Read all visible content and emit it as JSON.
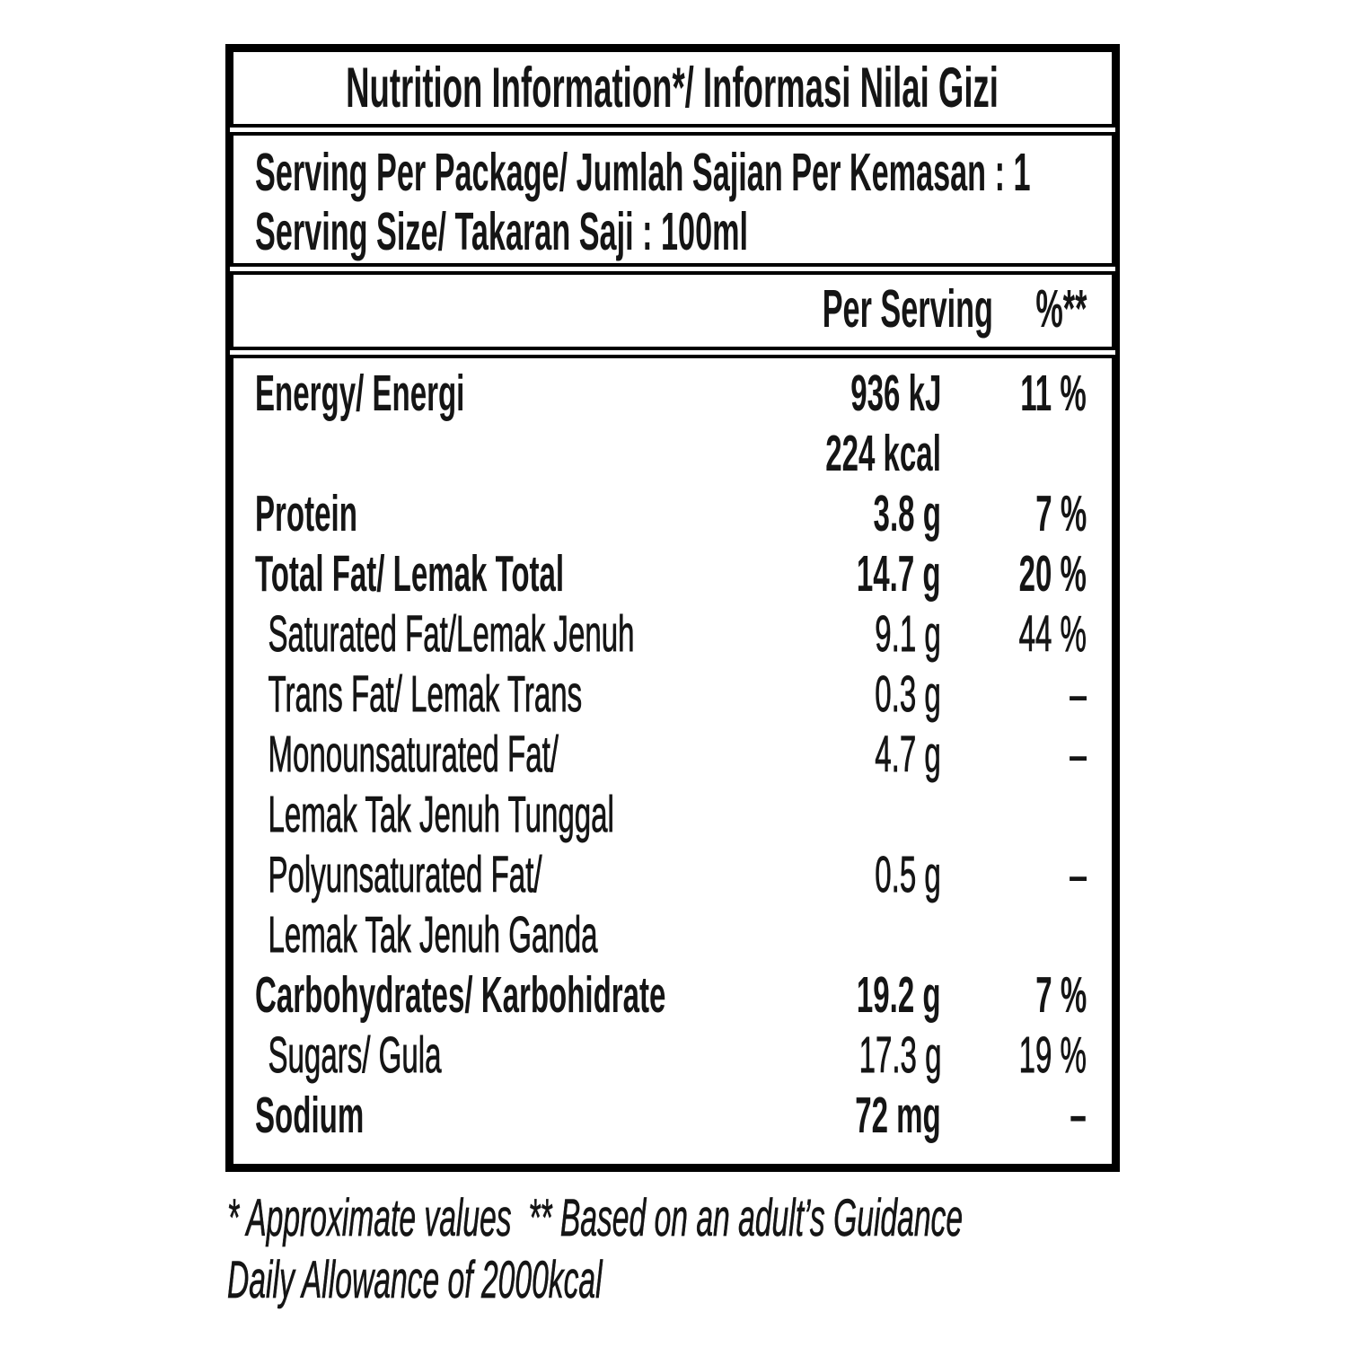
{
  "label": {
    "title": "Nutrition Information*/ Informasi Nilai Gizi",
    "serving": {
      "line1": "Serving Per Package/ Jumlah Sajian Per Kemasan : 1",
      "line2": "Serving Size/ Takaran Saji : 100ml"
    },
    "columns": {
      "per_serving": "Per Serving",
      "percent": "%**"
    },
    "rows": [
      {
        "name": "Energy/ Energi",
        "value": "936 kJ",
        "pct": "11 %",
        "level": "main"
      },
      {
        "name": "",
        "value": "224 kcal",
        "pct": "",
        "level": "main"
      },
      {
        "name": "Protein",
        "value": "3.8 g",
        "pct": "7 %",
        "level": "main"
      },
      {
        "name": "Total Fat/ Lemak Total",
        "value": "14.7 g",
        "pct": "20 %",
        "level": "main"
      },
      {
        "name": "Saturated Fat/Lemak Jenuh",
        "value": "9.1 g",
        "pct": "44 %",
        "level": "sub"
      },
      {
        "name": "Trans Fat/ Lemak Trans",
        "value": "0.3 g",
        "pct": "–",
        "level": "sub"
      },
      {
        "name": "Monounsaturated Fat/",
        "value": "4.7 g",
        "pct": "–",
        "level": "sub"
      },
      {
        "name": "Lemak Tak Jenuh Tunggal",
        "value": "",
        "pct": "",
        "level": "sub"
      },
      {
        "name": "Polyunsaturated Fat/",
        "value": "0.5 g",
        "pct": "–",
        "level": "sub"
      },
      {
        "name": "Lemak Tak Jenuh Ganda",
        "value": "",
        "pct": "",
        "level": "sub"
      },
      {
        "name": "Carbohydrates/ Karbohidrate",
        "value": "19.2 g",
        "pct": "7 %",
        "level": "main"
      },
      {
        "name": "Sugars/ Gula",
        "value": "17.3 g",
        "pct": "19 %",
        "level": "sub"
      },
      {
        "name": "Sodium",
        "value": "72 mg",
        "pct": "–",
        "level": "main"
      }
    ],
    "footnote": {
      "line1": "* Approximate values  ** Based on an adult’s Guidance",
      "line2": "Daily Allowance of 2000kcal"
    }
  }
}
